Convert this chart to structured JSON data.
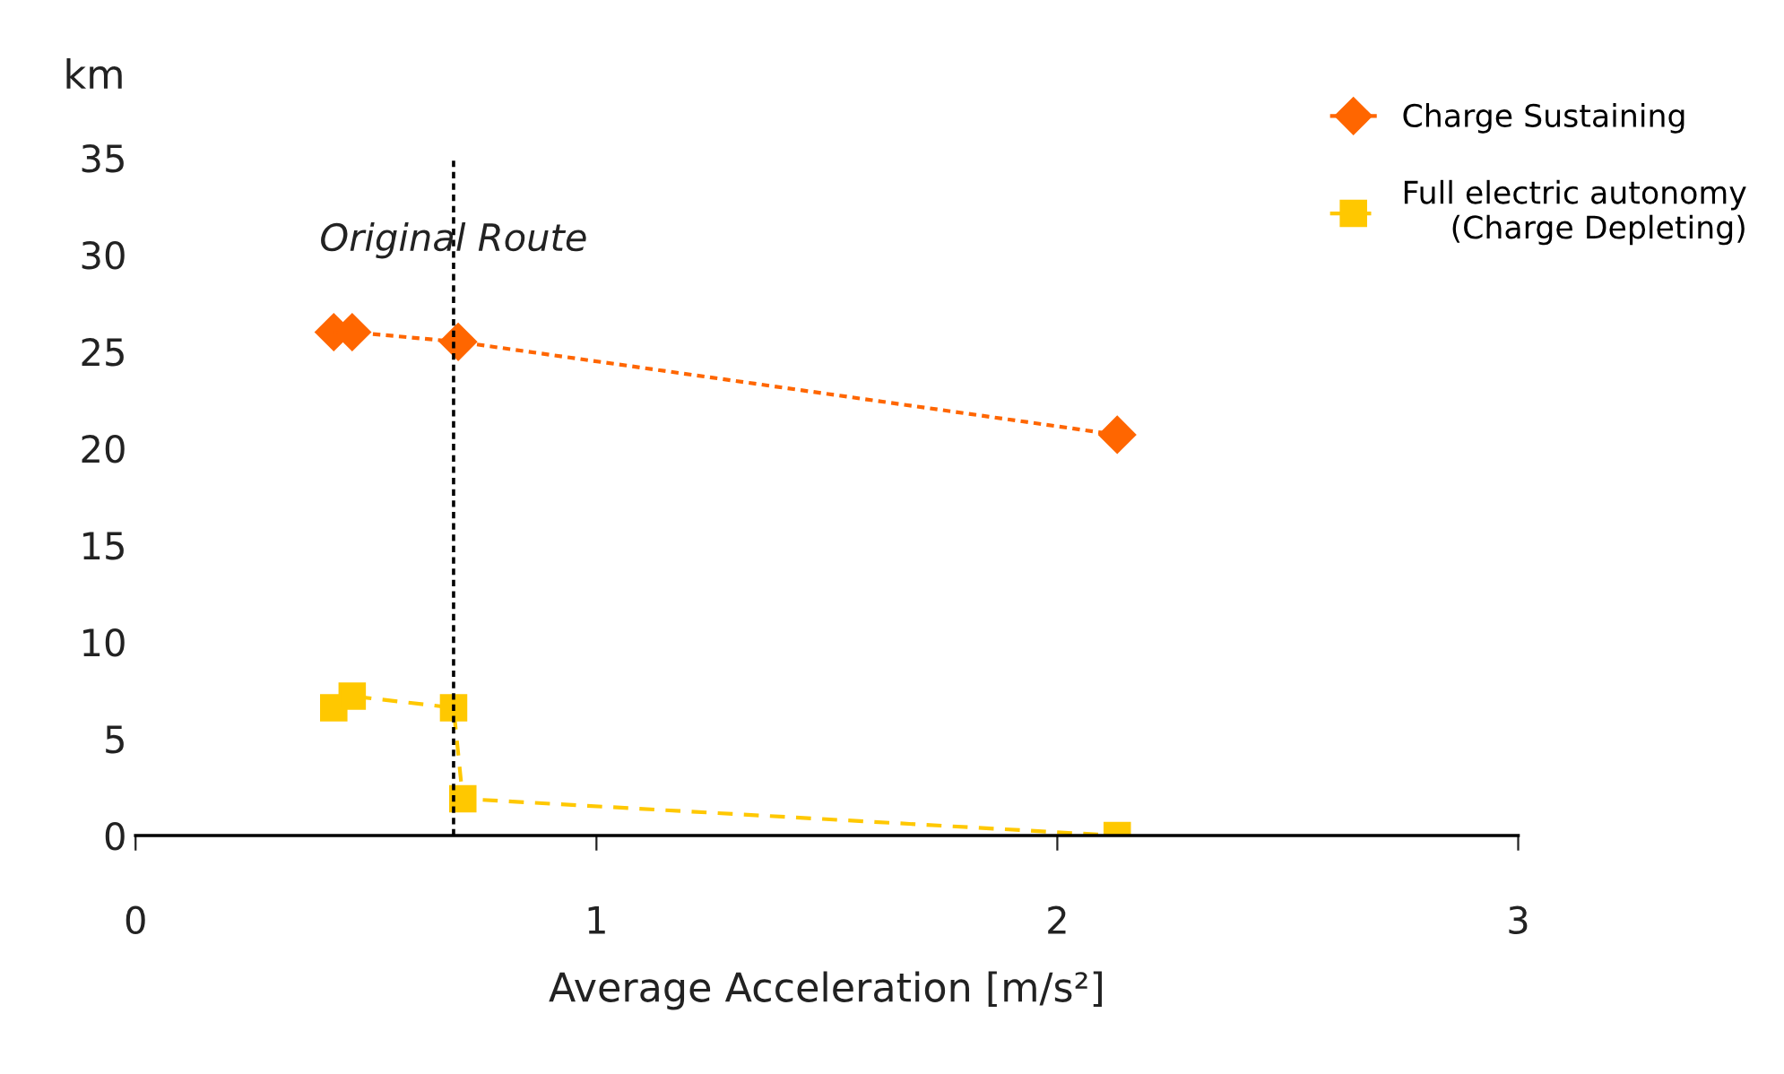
{
  "chart_data": {
    "type": "line",
    "xlabel": "Average Acceleration [m/s²]",
    "ylabel": "km",
    "xlim": [
      0,
      3
    ],
    "xticks": [
      0,
      1,
      2,
      3
    ],
    "ylim": [
      0,
      35
    ],
    "yticks": [
      0,
      5,
      10,
      15,
      20,
      25,
      30,
      35
    ],
    "grid": false,
    "legend": "top right",
    "series": [
      {
        "name": "Charge Sustaining",
        "color": "#ff6600",
        "marker": "diamond",
        "line_style": "dotted",
        "x": [
          0.43,
          0.47,
          0.7,
          2.13
        ],
        "values": [
          26,
          26,
          25.5,
          20.7
        ]
      },
      {
        "name": "Full electric autonomy\n(Charge Depleting)",
        "color": "#ffc800",
        "marker": "square",
        "line_style": "dashed",
        "x": [
          0.43,
          0.47,
          0.69,
          0.71,
          2.13
        ],
        "values": [
          6.6,
          7.2,
          6.6,
          1.9,
          0
        ]
      }
    ],
    "ref_lines": [
      {
        "axis": "x",
        "value": 0.69,
        "label": "Original Route",
        "color": "#000000",
        "line_style": "dotted"
      }
    ]
  }
}
